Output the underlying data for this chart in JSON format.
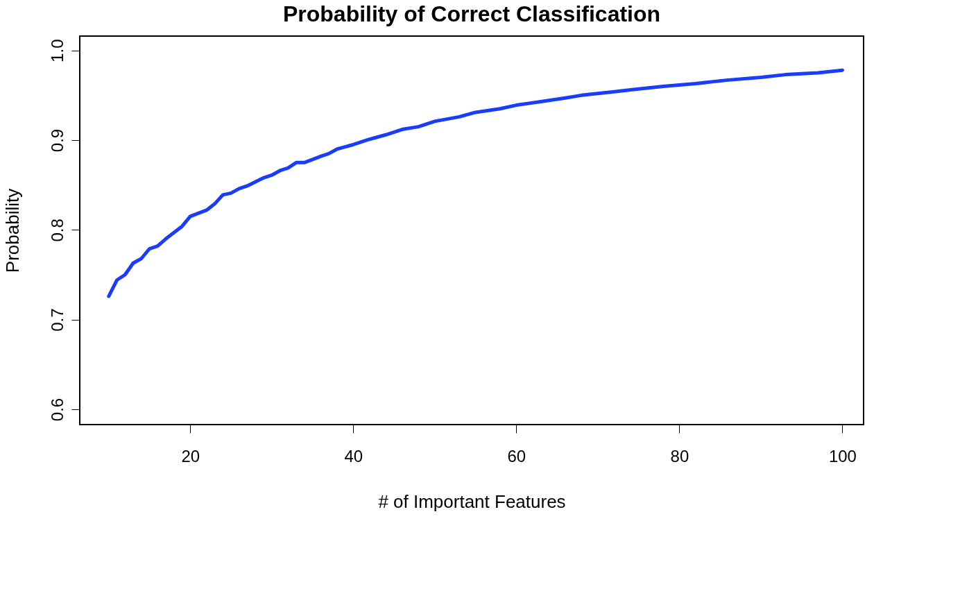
{
  "chart_data": {
    "type": "line",
    "title": "Probability of Correct Classification",
    "xlabel": "# of Important Features",
    "ylabel": "Probability",
    "x": [
      10,
      11,
      12,
      13,
      14,
      15,
      16,
      17,
      18,
      19,
      20,
      22,
      23,
      24,
      25,
      26,
      27,
      29,
      30,
      31,
      32,
      33,
      34,
      36,
      37,
      38,
      40,
      42,
      44,
      46,
      48,
      50,
      53,
      55,
      58,
      60,
      63,
      66,
      68,
      72,
      74,
      78,
      82,
      86,
      90,
      93,
      97,
      100
    ],
    "series": [
      {
        "color": "#1a3cff",
        "values": [
          0.726,
          0.744,
          0.75,
          0.763,
          0.768,
          0.779,
          0.782,
          0.79,
          0.797,
          0.804,
          0.815,
          0.822,
          0.829,
          0.839,
          0.841,
          0.846,
          0.849,
          0.858,
          0.861,
          0.866,
          0.869,
          0.875,
          0.875,
          0.882,
          0.885,
          0.89,
          0.895,
          0.901,
          0.906,
          0.912,
          0.915,
          0.921,
          0.926,
          0.931,
          0.935,
          0.939,
          0.943,
          0.947,
          0.95,
          0.954,
          0.956,
          0.96,
          0.963,
          0.967,
          0.97,
          0.973,
          0.975,
          0.978
        ]
      }
    ],
    "xlim": [
      6.45,
      102.6
    ],
    "ylim": [
      0.583,
      1.016
    ],
    "xticks": [
      20,
      40,
      60,
      80,
      100
    ],
    "yticks": [
      0.6,
      0.7,
      0.8,
      0.9,
      {
        "value": 1.0,
        "label": "1.0"
      }
    ],
    "grid": false,
    "legend": false,
    "marker": "none",
    "line_style": "solid"
  }
}
